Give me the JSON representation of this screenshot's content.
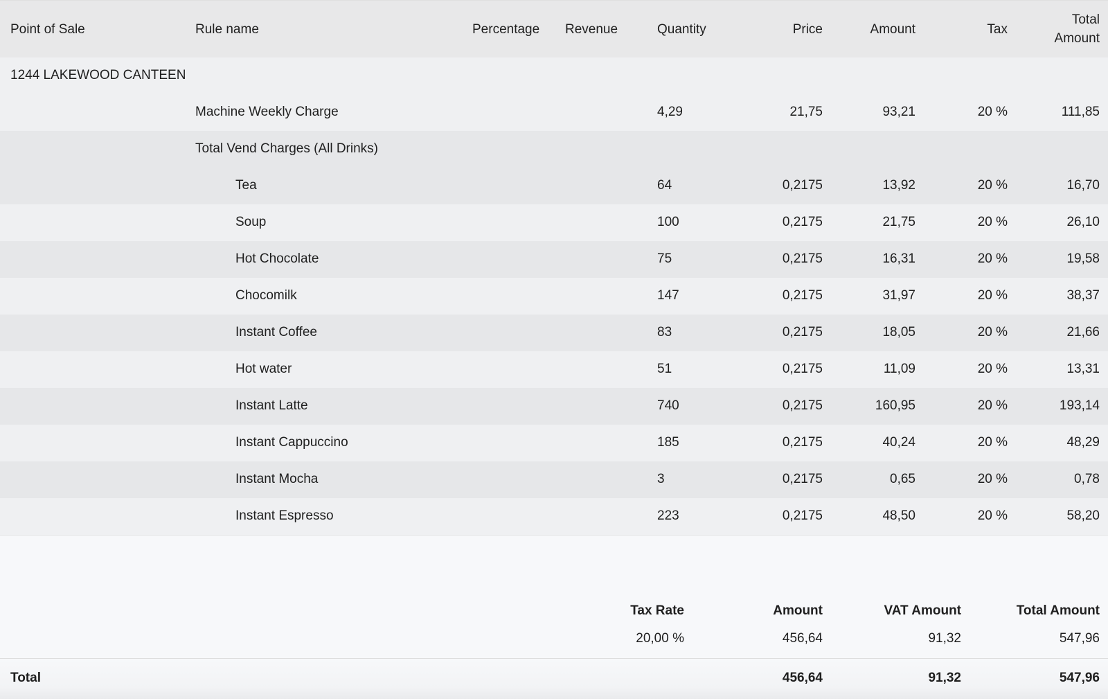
{
  "columns": {
    "point_of_sale": "Point of Sale",
    "rule_name": "Rule name",
    "percentage": "Percentage",
    "revenue": "Revenue",
    "quantity": "Quantity",
    "price": "Price",
    "amount": "Amount",
    "tax": "Tax",
    "total_amount_line1": "Total",
    "total_amount_line2": "Amount"
  },
  "group": {
    "point_of_sale": "1244 LAKEWOOD CANTEEN"
  },
  "machine_charge": {
    "rule_name": "Machine Weekly Charge",
    "quantity": "4,29",
    "price": "21,75",
    "amount": "93,21",
    "tax": "20 %",
    "total": "111,85"
  },
  "vend_group": {
    "rule_name": "Total Vend Charges (All Drinks)"
  },
  "items": [
    {
      "name": "Tea",
      "quantity": "64",
      "price": "0,2175",
      "amount": "13,92",
      "tax": "20 %",
      "total": "16,70"
    },
    {
      "name": "Soup",
      "quantity": "100",
      "price": "0,2175",
      "amount": "21,75",
      "tax": "20 %",
      "total": "26,10"
    },
    {
      "name": "Hot Chocolate",
      "quantity": "75",
      "price": "0,2175",
      "amount": "16,31",
      "tax": "20 %",
      "total": "19,58"
    },
    {
      "name": "Chocomilk",
      "quantity": "147",
      "price": "0,2175",
      "amount": "31,97",
      "tax": "20 %",
      "total": "38,37"
    },
    {
      "name": "Instant Coffee",
      "quantity": "83",
      "price": "0,2175",
      "amount": "18,05",
      "tax": "20 %",
      "total": "21,66"
    },
    {
      "name": "Hot water",
      "quantity": "51",
      "price": "0,2175",
      "amount": "11,09",
      "tax": "20 %",
      "total": "13,31"
    },
    {
      "name": "Instant Latte",
      "quantity": "740",
      "price": "0,2175",
      "amount": "160,95",
      "tax": "20 %",
      "total": "193,14"
    },
    {
      "name": "Instant Cappuccino",
      "quantity": "185",
      "price": "0,2175",
      "amount": "40,24",
      "tax": "20 %",
      "total": "48,29"
    },
    {
      "name": "Instant Mocha",
      "quantity": "3",
      "price": "0,2175",
      "amount": "0,65",
      "tax": "20 %",
      "total": "0,78"
    },
    {
      "name": "Instant Espresso",
      "quantity": "223",
      "price": "0,2175",
      "amount": "48,50",
      "tax": "20 %",
      "total": "58,20"
    }
  ],
  "summary": {
    "headers": {
      "tax_rate": "Tax Rate",
      "amount": "Amount",
      "vat_amount": "VAT Amount",
      "total_amount": "Total Amount"
    },
    "row": {
      "tax_rate": "20,00 %",
      "amount": "456,64",
      "vat_amount": "91,32",
      "total_amount": "547,96"
    }
  },
  "total": {
    "label": "Total",
    "amount": "456,64",
    "vat_amount": "91,32",
    "total_amount": "547,96"
  }
}
